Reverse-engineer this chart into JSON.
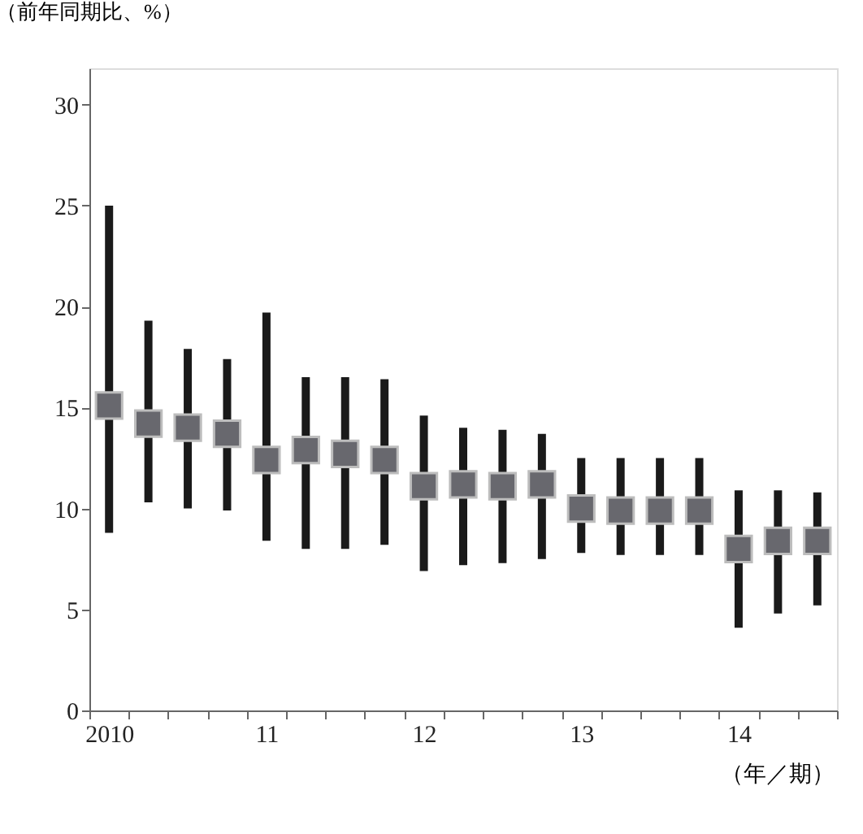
{
  "chart_data": {
    "type": "scatter",
    "ylabel": "（前年同期比、%）",
    "xlabel": "（年／期）",
    "categories": [
      "2010",
      null,
      null,
      null,
      "11",
      null,
      null,
      null,
      "12",
      null,
      null,
      null,
      "13",
      null,
      null,
      null,
      "14",
      null,
      null
    ],
    "series": [
      {
        "color": "#68686e",
        "values": [
          15.1,
          14.2,
          14.0,
          13.7,
          12.4,
          12.9,
          12.7,
          12.4,
          11.1,
          11.2,
          11.1,
          11.2,
          10.0,
          9.9,
          9.9,
          9.9,
          8.0,
          8.4,
          8.4
        ],
        "errors": [
          [
            8.8,
            25.0
          ],
          [
            10.3,
            19.3
          ],
          [
            10.0,
            17.9
          ],
          [
            9.9,
            17.4
          ],
          [
            8.4,
            19.7
          ],
          [
            8.0,
            16.5
          ],
          [
            8.0,
            16.5
          ],
          [
            8.2,
            16.4
          ],
          [
            6.9,
            14.6
          ],
          [
            7.2,
            14.0
          ],
          [
            7.3,
            13.9
          ],
          [
            7.5,
            13.7
          ],
          [
            7.8,
            12.5
          ],
          [
            7.7,
            12.5
          ],
          [
            7.7,
            12.5
          ],
          [
            7.7,
            12.5
          ],
          [
            4.1,
            10.9
          ],
          [
            4.8,
            10.9
          ],
          [
            5.2,
            10.8
          ]
        ]
      }
    ],
    "ylim": [
      0,
      31.8
    ],
    "yticks": [
      0,
      5,
      10,
      15,
      20,
      25,
      30
    ],
    "marker": "square",
    "grid": false
  }
}
